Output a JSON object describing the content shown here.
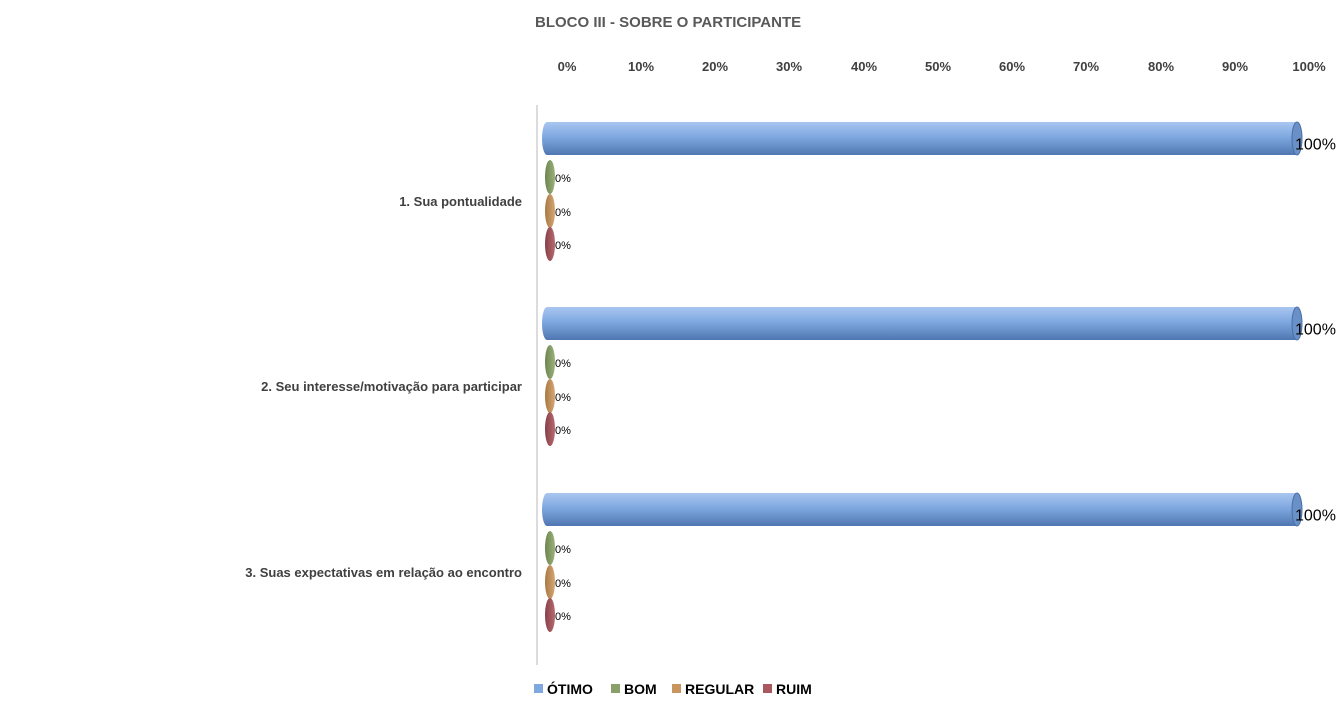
{
  "chart_data": {
    "type": "bar",
    "orientation": "horizontal",
    "title": "BLOCO III - SOBRE O PARTICIPANTE",
    "categories": [
      "1. Sua pontualidade",
      "2. Seu interesse/motivação para participar",
      "3. Suas expectativas em relação ao encontro"
    ],
    "series": [
      {
        "name": "ÓTIMO",
        "values": [
          100,
          100,
          100
        ],
        "color": "#7fa8e0"
      },
      {
        "name": "BOM",
        "values": [
          0,
          0,
          0
        ],
        "color": "#8aa06a"
      },
      {
        "name": "REGULAR",
        "values": [
          0,
          0,
          0
        ],
        "color": "#c8955e"
      },
      {
        "name": "RUIM",
        "values": [
          0,
          0,
          0
        ],
        "color": "#a8585e"
      }
    ],
    "x_ticks": [
      "0%",
      "10%",
      "20%",
      "30%",
      "40%",
      "50%",
      "60%",
      "70%",
      "80%",
      "90%",
      "100%"
    ],
    "xlim": [
      0,
      100
    ],
    "value_format": "percent",
    "axis_position": "top",
    "grid": false,
    "legend_position": "bottom"
  }
}
